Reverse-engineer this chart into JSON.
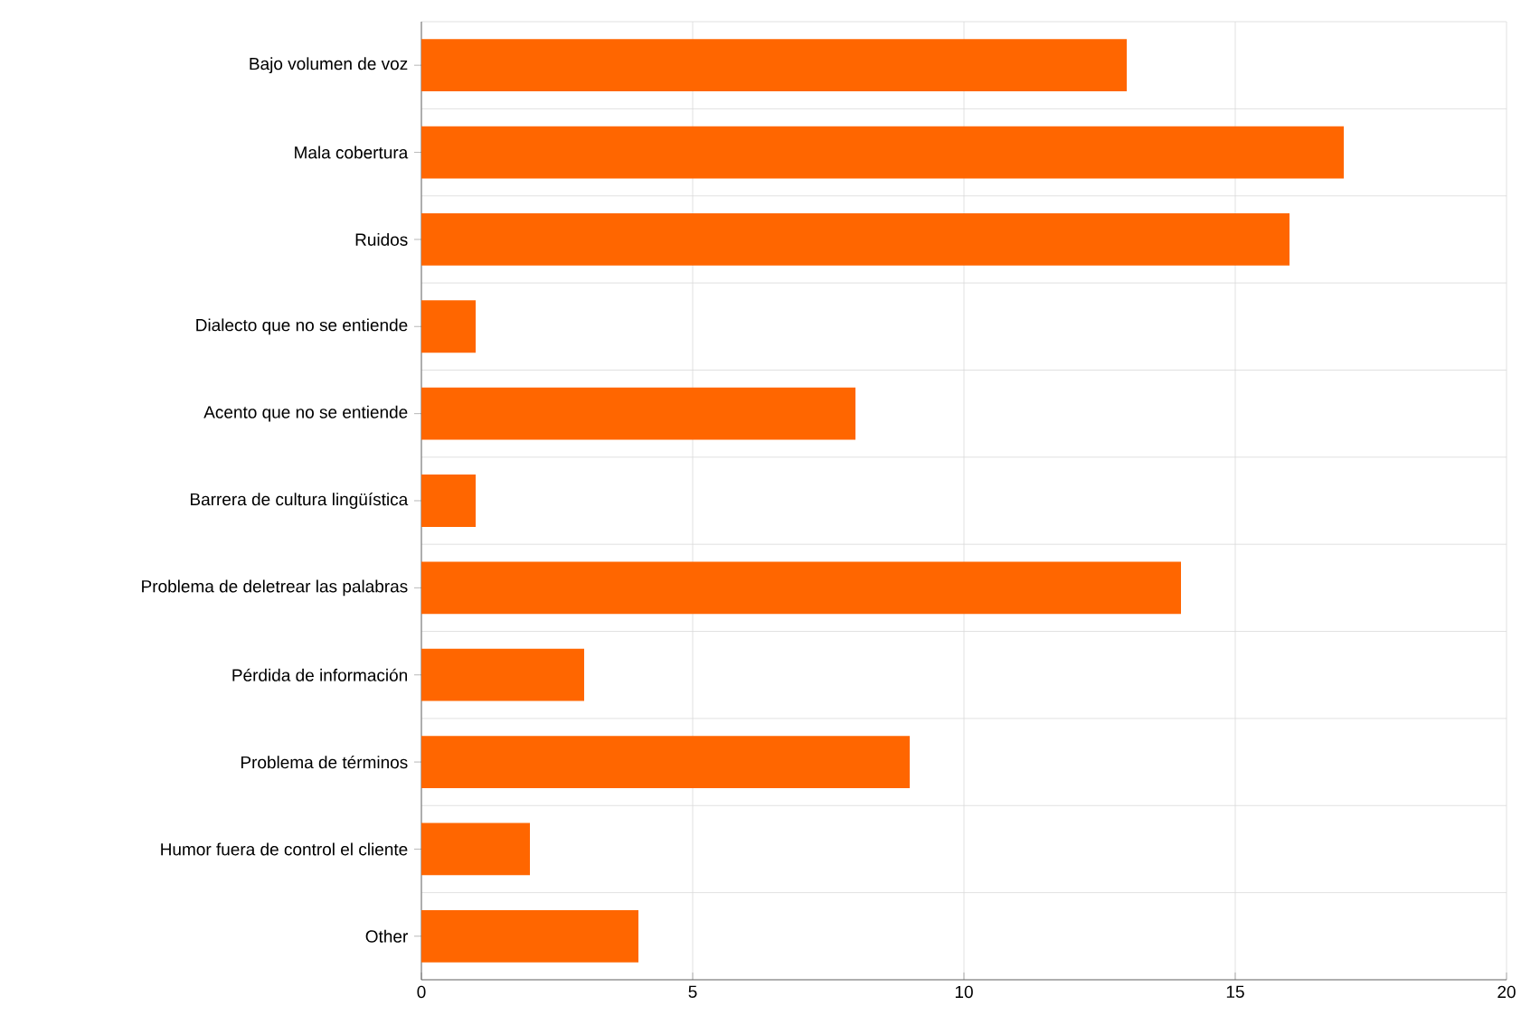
{
  "chart_data": {
    "type": "bar",
    "orientation": "horizontal",
    "categories": [
      "Bajo volumen de voz",
      "Mala cobertura",
      "Ruidos",
      "Dialecto que no se entiende",
      "Acento que no se entiende",
      "Barrera de cultura lingüística",
      "Problema de deletrear las palabras",
      "Pérdida de información",
      "Problema de términos",
      "Humor fuera de control el cliente",
      "Other"
    ],
    "values": [
      13,
      17,
      16,
      1,
      8,
      1,
      14,
      3,
      9,
      2,
      4
    ],
    "color": "#ff6600",
    "xlim": [
      0,
      20
    ],
    "xticks": [
      0,
      5,
      10,
      15,
      20
    ],
    "grid": true
  }
}
